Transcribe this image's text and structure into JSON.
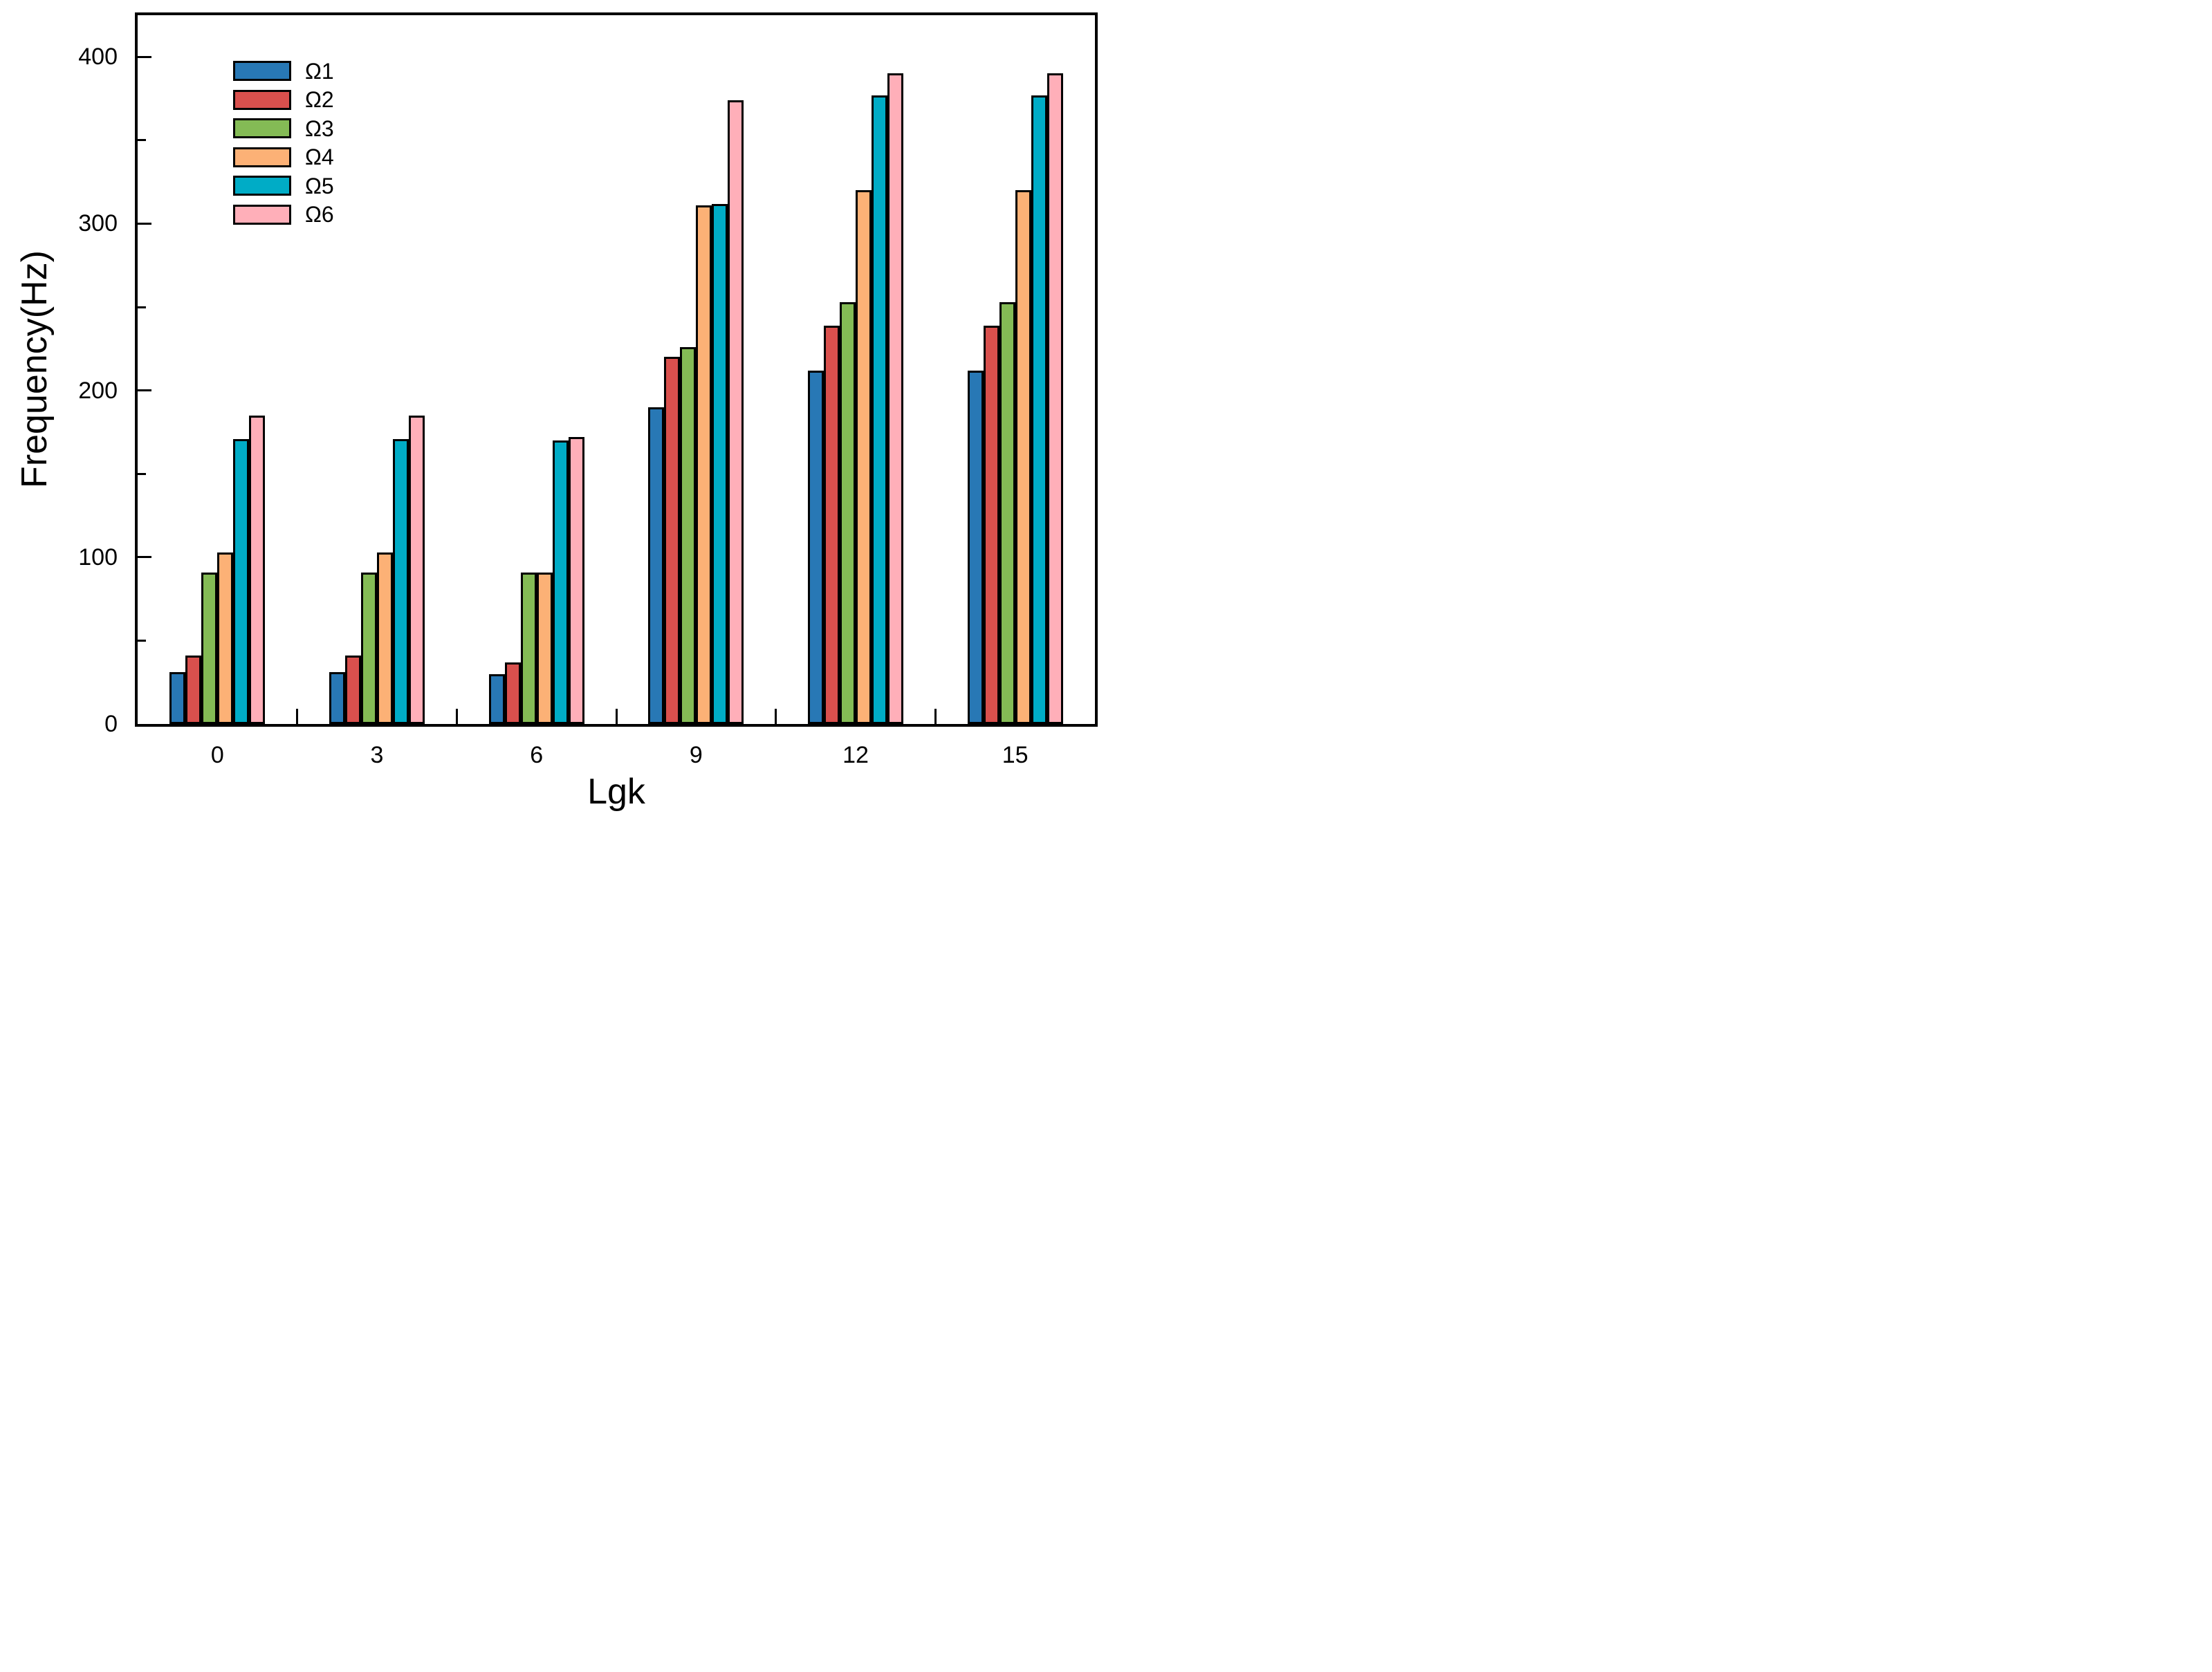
{
  "chart_data": {
    "type": "bar",
    "title": "",
    "xlabel": "Lgk",
    "ylabel": "Frequency(Hz)",
    "categories": [
      "0",
      "3",
      "6",
      "9",
      "12",
      "15"
    ],
    "series": [
      {
        "name": "Ω1",
        "color": "#2878B5",
        "values": [
          31,
          31,
          30,
          190,
          212,
          212
        ]
      },
      {
        "name": "Ω2",
        "color": "#D9504D",
        "values": [
          41,
          41,
          37,
          220,
          239,
          239
        ]
      },
      {
        "name": "Ω3",
        "color": "#84BB55",
        "values": [
          91,
          91,
          91,
          226,
          253,
          253
        ]
      },
      {
        "name": "Ω4",
        "color": "#FCB176",
        "values": [
          103,
          103,
          91,
          311,
          320,
          320
        ]
      },
      {
        "name": "Ω5",
        "color": "#00ACC6",
        "values": [
          171,
          171,
          170,
          312,
          377,
          377
        ]
      },
      {
        "name": "Ω6",
        "color": "#FFAFB9",
        "values": [
          185,
          185,
          172,
          374,
          390,
          390
        ]
      }
    ],
    "y_major_ticks": [
      0,
      100,
      200,
      300,
      400
    ],
    "y_minor_ticks": [
      50,
      150,
      250,
      350
    ],
    "ylim": [
      0,
      425
    ],
    "grid": false,
    "legend_position": "top-left-inside",
    "bar_border_color": "#000000",
    "axis_color": "#000000"
  }
}
